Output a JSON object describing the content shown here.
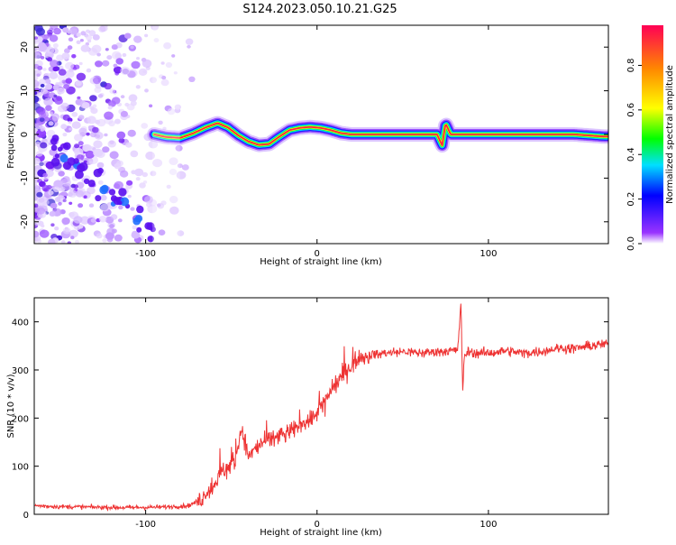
{
  "title": "S124.2023.050.10.21.G25",
  "colorbar": {
    "label": "Normalized spectral amplitude",
    "ticks": [
      "0.0",
      "0.2",
      "0.4",
      "0.6",
      "0.8"
    ],
    "tick_values": [
      0.0,
      0.2,
      0.4,
      0.6,
      0.8
    ],
    "range": [
      0,
      0.98
    ],
    "colors": [
      "#ffffff",
      "#9933ff",
      "#0000ff",
      "#00e0ff",
      "#00ff00",
      "#ffff00",
      "#ff8800",
      "#ff0055"
    ]
  },
  "chart_data": [
    {
      "type": "heatmap",
      "xlabel": "Height of straight line (km)",
      "ylabel": "Frequency (Hz)",
      "xlim": [
        -165,
        170
      ],
      "ylim": [
        -25,
        25
      ],
      "xticks": [
        -100,
        0,
        100
      ],
      "xtick_labels": [
        "-100",
        "0",
        "100"
      ],
      "yticks": [
        -20,
        -10,
        0,
        10,
        20
      ],
      "ytick_labels": [
        "-20",
        "-10",
        "0",
        "10",
        "20"
      ],
      "ridge": {
        "x": [
          -95,
          -88,
          -80,
          -72,
          -65,
          -58,
          -52,
          -46,
          -40,
          -34,
          -28,
          -22,
          -16,
          -10,
          -4,
          2,
          8,
          14,
          20,
          40,
          60,
          70,
          73,
          75,
          78,
          82,
          100,
          130,
          150,
          168
        ],
        "y": [
          0,
          -0.6,
          -0.8,
          0.3,
          1.6,
          2.6,
          1.6,
          -0.2,
          -1.6,
          -2.4,
          -2.2,
          -0.5,
          1.0,
          1.5,
          1.7,
          1.5,
          1.0,
          0.3,
          0,
          0,
          0,
          0,
          -2.5,
          2.5,
          0,
          0,
          0,
          0,
          0,
          -0.5
        ],
        "peak_amplitude": 0.98
      },
      "noise_region_x": [
        -165,
        -75
      ]
    },
    {
      "type": "line",
      "xlabel": "Height of straight line (km)",
      "ylabel": "SNR (10 * v/v)",
      "xlim": [
        -165,
        170
      ],
      "ylim": [
        0,
        450
      ],
      "xticks": [
        -100,
        0,
        100
      ],
      "xtick_labels": [
        "-100",
        "0",
        "100"
      ],
      "yticks": [
        0,
        100,
        200,
        300,
        400
      ],
      "ytick_labels": [
        "0",
        "100",
        "200",
        "300",
        "400"
      ],
      "color": "#ee3333",
      "series": [
        {
          "x": [
            -165,
            -150,
            -130,
            -110,
            -90,
            -75,
            -68,
            -62,
            -55,
            -48,
            -44,
            -40,
            -32,
            -24,
            -16,
            -8,
            -2,
            5,
            10,
            15,
            20,
            25,
            30,
            40,
            50,
            60,
            70,
            78,
            82,
            84,
            85,
            86,
            88,
            92,
            100,
            110,
            120,
            130,
            140,
            150,
            160,
            170
          ],
          "y": [
            18,
            16,
            15,
            14,
            15,
            18,
            30,
            55,
            90,
            110,
            180,
            120,
            150,
            160,
            170,
            190,
            200,
            240,
            265,
            290,
            310,
            325,
            330,
            335,
            338,
            335,
            338,
            340,
            340,
            440,
            250,
            330,
            338,
            335,
            335,
            340,
            335,
            338,
            345,
            345,
            350,
            355
          ]
        }
      ]
    }
  ]
}
